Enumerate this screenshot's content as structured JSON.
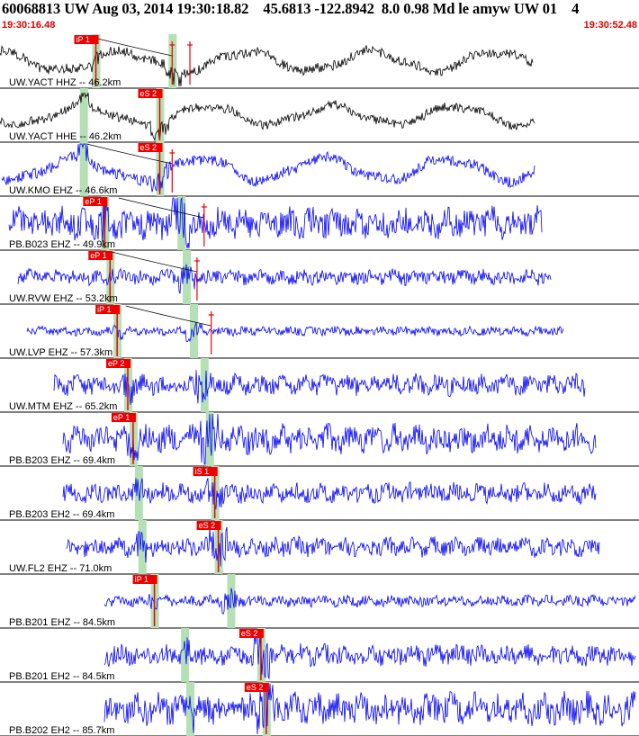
{
  "header": {
    "title": "60068813 UW Aug 03, 2014 19:30:18.82    45.6813 -122.8942  8.0 0.98 Md le amyw UW 01    4",
    "time_start": "19:30:16.48",
    "time_end": "19:30:52.48"
  },
  "colors": {
    "trace_blue": "#0000ff",
    "trace_black": "#000000",
    "pick_red": "#ee0000",
    "window_green": "#b5e0b5",
    "travel_curve": "#000000"
  },
  "traces": [
    {
      "label": "UW.YACT HHZ -- 46.2km",
      "color": "black",
      "p_pick": {
        "label": "iP 1",
        "t": 5.4
      },
      "s_pick": null,
      "marks": [
        {
          "t": 9.7
        },
        {
          "t": 10.7
        }
      ],
      "long_period": true,
      "amp": 0.32
    },
    {
      "label": "UW.YACT HHE -- 46.2km",
      "color": "black",
      "p_pick": null,
      "s_pick": {
        "label": "eS 2",
        "t": 9.0
      },
      "marks": [],
      "long_period": true,
      "amp": 0.3
    },
    {
      "label": "UW.KMO EHZ -- 46.6km",
      "color": "blue",
      "p_pick": null,
      "s_pick": {
        "label": "eS 2",
        "t": 9.0
      },
      "marks": [
        {
          "t": 9.7
        }
      ],
      "long_period": true,
      "amp": 0.36
    },
    {
      "label": "PB.B023 EHZ -- 49.9km",
      "color": "blue",
      "p_pick": {
        "label": "eP 1",
        "t": 5.9
      },
      "s_pick": null,
      "marks": [
        {
          "t": 11.5
        }
      ],
      "long_period": false,
      "amp": 0.42
    },
    {
      "label": "UW.RVW EHZ -- 53.2km",
      "color": "blue",
      "p_pick": {
        "label": "eP 1",
        "t": 6.2
      },
      "s_pick": null,
      "marks": [
        {
          "t": 11.1
        }
      ],
      "long_period": false,
      "amp": 0.2
    },
    {
      "label": "UW.LVP EHZ -- 57.3km",
      "color": "blue",
      "p_pick": {
        "label": "iP 1",
        "t": 6.6
      },
      "s_pick": null,
      "marks": [
        {
          "t": 11.9
        }
      ],
      "long_period": false,
      "amp": 0.12
    },
    {
      "label": "UW.MTM EHZ -- 65.2km",
      "color": "blue",
      "p_pick": {
        "label": "eP 2",
        "t": 7.2
      },
      "s_pick": null,
      "marks": [],
      "long_period": false,
      "amp": 0.28
    },
    {
      "label": "PB.B203 EHZ -- 69.4km",
      "color": "blue",
      "p_pick": {
        "label": "eP 1",
        "t": 7.5
      },
      "s_pick": null,
      "marks": [],
      "long_period": false,
      "amp": 0.38
    },
    {
      "label": "PB.B203 EH2 -- 69.4km",
      "color": "blue",
      "p_pick": null,
      "s_pick": {
        "label": "iS 1",
        "t": 12.1
      },
      "marks": [],
      "long_period": false,
      "amp": 0.26
    },
    {
      "label": "UW.FL2 EHZ -- 71.0km",
      "color": "blue",
      "p_pick": null,
      "s_pick": {
        "label": "eS 2",
        "t": 12.3
      },
      "marks": [],
      "long_period": false,
      "amp": 0.25
    },
    {
      "label": "PB.B201 EHZ -- 84.5km",
      "color": "blue",
      "p_pick": {
        "label": "iP 1",
        "t": 8.7
      },
      "s_pick": null,
      "marks": [],
      "long_period": false,
      "amp": 0.15
    },
    {
      "label": "PB.B201 EH2 -- 84.5km",
      "color": "blue",
      "p_pick": null,
      "s_pick": {
        "label": "eS 2",
        "t": 14.7
      },
      "marks": [],
      "long_period": false,
      "amp": 0.28
    },
    {
      "label": "PB.B202 EH2 -- 85.7km",
      "color": "blue",
      "p_pick": null,
      "s_pick": {
        "label": "eS 2",
        "t": 15.0
      },
      "marks": [],
      "long_period": false,
      "amp": 0.42
    }
  ]
}
